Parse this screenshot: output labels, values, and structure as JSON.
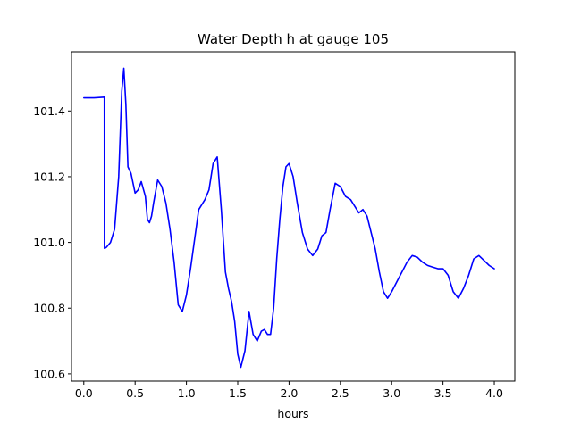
{
  "chart_data": {
    "type": "line",
    "title": "Water Depth h at gauge 105",
    "xlabel": "hours",
    "ylabel": "",
    "xlim": [
      -0.12,
      4.2
    ],
    "ylim": [
      100.578,
      101.58
    ],
    "xticks": [
      0.0,
      0.5,
      1.0,
      1.5,
      2.0,
      2.5,
      3.0,
      3.5,
      4.0
    ],
    "xtick_labels": [
      "0.0",
      "0.5",
      "1.0",
      "1.5",
      "2.0",
      "2.5",
      "3.0",
      "3.5",
      "4.0"
    ],
    "yticks": [
      100.6,
      100.8,
      101.0,
      101.2,
      101.4
    ],
    "ytick_labels": [
      "100.6",
      "100.8",
      "101.0",
      "101.2",
      "101.4"
    ],
    "grid": false,
    "legend": "none",
    "line_color": "#0000ff",
    "series": [
      {
        "x": [
          0.0,
          0.1,
          0.2,
          0.201,
          0.205,
          0.22,
          0.26,
          0.3,
          0.34,
          0.37,
          0.39,
          0.41,
          0.43,
          0.46,
          0.5,
          0.53,
          0.56,
          0.6,
          0.62,
          0.64,
          0.66,
          0.68,
          0.72,
          0.76,
          0.8,
          0.84,
          0.88,
          0.92,
          0.96,
          1.0,
          1.04,
          1.08,
          1.12,
          1.18,
          1.22,
          1.26,
          1.3,
          1.34,
          1.38,
          1.41,
          1.44,
          1.47,
          1.5,
          1.53,
          1.57,
          1.61,
          1.65,
          1.69,
          1.73,
          1.76,
          1.79,
          1.82,
          1.85,
          1.88,
          1.91,
          1.94,
          1.97,
          2.0,
          2.04,
          2.08,
          2.13,
          2.18,
          2.23,
          2.28,
          2.32,
          2.36,
          2.4,
          2.45,
          2.5,
          2.55,
          2.6,
          2.64,
          2.68,
          2.72,
          2.76,
          2.8,
          2.84,
          2.88,
          2.92,
          2.96,
          3.0,
          3.05,
          3.1,
          3.15,
          3.2,
          3.25,
          3.3,
          3.35,
          3.4,
          3.45,
          3.5,
          3.55,
          3.6,
          3.65,
          3.7,
          3.75,
          3.8,
          3.85,
          3.9,
          3.95,
          4.0
        ],
        "y": [
          101.44,
          101.44,
          101.442,
          100.982,
          100.982,
          100.985,
          101.0,
          101.04,
          101.2,
          101.46,
          101.53,
          101.42,
          101.23,
          101.21,
          101.15,
          101.16,
          101.185,
          101.14,
          101.07,
          101.06,
          101.08,
          101.12,
          101.19,
          101.17,
          101.12,
          101.04,
          100.94,
          100.81,
          100.79,
          100.84,
          100.92,
          101.01,
          101.1,
          101.13,
          101.16,
          101.24,
          101.26,
          101.1,
          100.91,
          100.86,
          100.82,
          100.76,
          100.66,
          100.62,
          100.67,
          100.79,
          100.72,
          100.7,
          100.73,
          100.735,
          100.72,
          100.72,
          100.8,
          100.95,
          101.07,
          101.17,
          101.23,
          101.24,
          101.2,
          101.12,
          101.03,
          100.98,
          100.96,
          100.98,
          101.02,
          101.03,
          101.1,
          101.18,
          101.17,
          101.14,
          101.13,
          101.11,
          101.09,
          101.1,
          101.08,
          101.03,
          100.98,
          100.91,
          100.85,
          100.83,
          100.85,
          100.88,
          100.91,
          100.94,
          100.96,
          100.955,
          100.94,
          100.93,
          100.925,
          100.92,
          100.92,
          100.9,
          100.85,
          100.83,
          100.86,
          100.9,
          100.95,
          100.96,
          100.945,
          100.93,
          100.92
        ]
      }
    ]
  }
}
